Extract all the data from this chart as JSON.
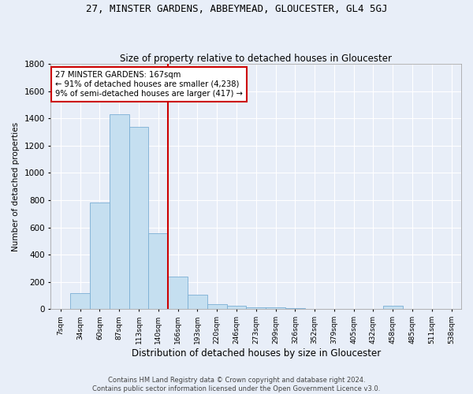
{
  "title": "27, MINSTER GARDENS, ABBEYMEAD, GLOUCESTER, GL4 5GJ",
  "subtitle": "Size of property relative to detached houses in Gloucester",
  "xlabel": "Distribution of detached houses by size in Gloucester",
  "ylabel": "Number of detached properties",
  "categories": [
    "7sqm",
    "34sqm",
    "60sqm",
    "87sqm",
    "113sqm",
    "140sqm",
    "166sqm",
    "193sqm",
    "220sqm",
    "246sqm",
    "273sqm",
    "299sqm",
    "326sqm",
    "352sqm",
    "379sqm",
    "405sqm",
    "432sqm",
    "458sqm",
    "485sqm",
    "511sqm",
    "538sqm"
  ],
  "values": [
    5,
    120,
    780,
    1430,
    1340,
    560,
    240,
    105,
    35,
    25,
    15,
    12,
    10,
    5,
    0,
    0,
    0,
    25,
    0,
    0,
    0
  ],
  "bar_color": "#c5dff0",
  "bar_edge_color": "#7bafd4",
  "vline_x_index": 5.5,
  "vline_color": "#cc0000",
  "annotation_text": "27 MINSTER GARDENS: 167sqm\n← 91% of detached houses are smaller (4,238)\n9% of semi-detached houses are larger (417) →",
  "annotation_box_color": "#ffffff",
  "annotation_box_edge": "#cc0000",
  "ylim": [
    0,
    1800
  ],
  "yticks": [
    0,
    200,
    400,
    600,
    800,
    1000,
    1200,
    1400,
    1600,
    1800
  ],
  "footer_line1": "Contains HM Land Registry data © Crown copyright and database right 2024.",
  "footer_line2": "Contains public sector information licensed under the Open Government Licence v3.0.",
  "background_color": "#e8eef8",
  "grid_color": "#ffffff",
  "title_fontsize": 9,
  "subtitle_fontsize": 8.5
}
